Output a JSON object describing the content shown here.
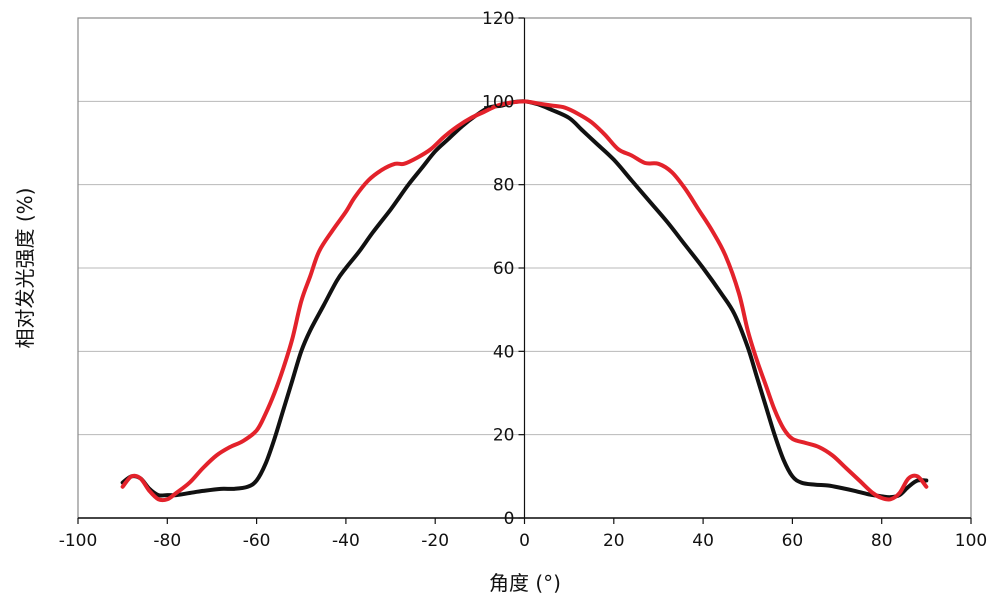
{
  "chart_data": {
    "type": "line",
    "title": "",
    "xlabel": "角度 (°)",
    "ylabel": "相对发光强度 (%)",
    "xlim": [
      -100,
      100
    ],
    "ylim": [
      0,
      120
    ],
    "xticks": [
      "-100",
      "-80",
      "-60",
      "-40",
      "-20",
      "0",
      "20",
      "40",
      "60",
      "80",
      "100"
    ],
    "yticks": [
      "0",
      "20",
      "40",
      "60",
      "80",
      "100",
      "120"
    ],
    "grid": "horizontal",
    "legend": "none",
    "series": [
      {
        "color": "#111111",
        "points": [
          [
            -90,
            8.5
          ],
          [
            -88,
            10
          ],
          [
            -86,
            9.5
          ],
          [
            -84,
            7
          ],
          [
            -82,
            5.5
          ],
          [
            -80,
            5.5
          ],
          [
            -78,
            5.5
          ],
          [
            -75,
            6
          ],
          [
            -72,
            6.5
          ],
          [
            -68,
            7
          ],
          [
            -65,
            7
          ],
          [
            -62,
            7.5
          ],
          [
            -60,
            9
          ],
          [
            -58,
            13
          ],
          [
            -56,
            19
          ],
          [
            -54,
            26
          ],
          [
            -52,
            33
          ],
          [
            -50,
            40
          ],
          [
            -48,
            45
          ],
          [
            -45,
            51
          ],
          [
            -42,
            57
          ],
          [
            -40,
            60
          ],
          [
            -37,
            64
          ],
          [
            -34,
            68.5
          ],
          [
            -30,
            74
          ],
          [
            -28,
            77
          ],
          [
            -26,
            80
          ],
          [
            -23,
            84
          ],
          [
            -20,
            88
          ],
          [
            -17,
            91
          ],
          [
            -14,
            94
          ],
          [
            -11,
            96.5
          ],
          [
            -8,
            98.5
          ],
          [
            -5,
            99
          ],
          [
            -3,
            99.7
          ],
          [
            0,
            100
          ],
          [
            3,
            99.3
          ],
          [
            6,
            98
          ],
          [
            10,
            96
          ],
          [
            13,
            93
          ],
          [
            16,
            90
          ],
          [
            20,
            86
          ],
          [
            24,
            81
          ],
          [
            28,
            76
          ],
          [
            32,
            71
          ],
          [
            36,
            65.5
          ],
          [
            40,
            60
          ],
          [
            44,
            54
          ],
          [
            47,
            49
          ],
          [
            50,
            41
          ],
          [
            52,
            34
          ],
          [
            54,
            27
          ],
          [
            56,
            20
          ],
          [
            58,
            14
          ],
          [
            60,
            10
          ],
          [
            62,
            8.5
          ],
          [
            65,
            8
          ],
          [
            68,
            7.8
          ],
          [
            71,
            7.2
          ],
          [
            74,
            6.5
          ],
          [
            77,
            5.7
          ],
          [
            80,
            5.2
          ],
          [
            82,
            5
          ],
          [
            84,
            5.5
          ],
          [
            86,
            7.5
          ],
          [
            88,
            9
          ],
          [
            90,
            9
          ]
        ]
      },
      {
        "color": "#e3222b",
        "points": [
          [
            -90,
            7.5
          ],
          [
            -88,
            10
          ],
          [
            -86,
            9.5
          ],
          [
            -84,
            6.5
          ],
          [
            -82,
            4.5
          ],
          [
            -80,
            4.5
          ],
          [
            -78,
            6
          ],
          [
            -75,
            8.5
          ],
          [
            -72,
            12
          ],
          [
            -69,
            15
          ],
          [
            -66,
            17
          ],
          [
            -63,
            18.5
          ],
          [
            -60,
            21
          ],
          [
            -58,
            25
          ],
          [
            -56,
            30
          ],
          [
            -54,
            36
          ],
          [
            -52,
            43
          ],
          [
            -50,
            52
          ],
          [
            -48,
            58
          ],
          [
            -46,
            64
          ],
          [
            -43,
            69
          ],
          [
            -40,
            73.5
          ],
          [
            -38,
            77
          ],
          [
            -35,
            81
          ],
          [
            -32,
            83.5
          ],
          [
            -29,
            85
          ],
          [
            -27,
            85
          ],
          [
            -24,
            86.5
          ],
          [
            -21,
            88.5
          ],
          [
            -18,
            91.5
          ],
          [
            -15,
            94
          ],
          [
            -12,
            96
          ],
          [
            -9,
            97.5
          ],
          [
            -6,
            99
          ],
          [
            -3,
            99.7
          ],
          [
            0,
            100
          ],
          [
            3,
            99.5
          ],
          [
            6,
            99
          ],
          [
            9,
            98.5
          ],
          [
            12,
            97
          ],
          [
            15,
            95
          ],
          [
            18,
            92
          ],
          [
            21,
            88.5
          ],
          [
            24,
            87
          ],
          [
            27,
            85.2
          ],
          [
            30,
            85
          ],
          [
            33,
            83
          ],
          [
            36,
            79
          ],
          [
            39,
            74
          ],
          [
            42,
            69
          ],
          [
            45,
            63
          ],
          [
            48,
            54
          ],
          [
            50,
            45
          ],
          [
            52,
            38
          ],
          [
            54,
            32
          ],
          [
            56,
            26
          ],
          [
            58,
            21.5
          ],
          [
            60,
            19
          ],
          [
            63,
            18
          ],
          [
            66,
            17
          ],
          [
            69,
            15
          ],
          [
            72,
            12
          ],
          [
            75,
            9
          ],
          [
            78,
            6
          ],
          [
            80,
            4.8
          ],
          [
            82,
            4.5
          ],
          [
            84,
            6
          ],
          [
            86,
            9.5
          ],
          [
            88,
            10
          ],
          [
            90,
            7.5
          ]
        ]
      }
    ]
  }
}
